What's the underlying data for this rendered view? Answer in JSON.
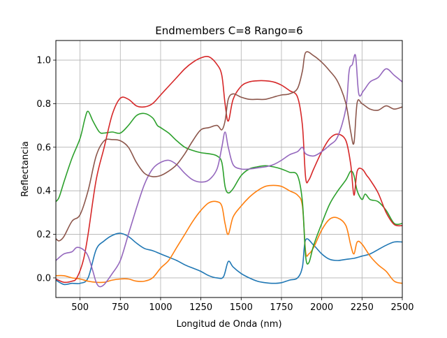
{
  "chart_data": {
    "type": "line",
    "title": "Endmembers C=8 Rango=6",
    "xlabel": "Longitud de Onda (nm)",
    "ylabel": "Reflectancia",
    "xlim": [
      350,
      2500
    ],
    "ylim": [
      -0.09,
      1.09
    ],
    "x_ticks": [
      500,
      750,
      1000,
      1250,
      1500,
      1750,
      2000,
      2250,
      2500
    ],
    "y_ticks": [
      0.0,
      0.2,
      0.4,
      0.6,
      0.8,
      1.0
    ],
    "grid": true,
    "legend": "none",
    "series": [
      {
        "color": "#1f77b4",
        "points": [
          [
            350,
            -0.01
          ],
          [
            400,
            -0.03
          ],
          [
            450,
            -0.025
          ],
          [
            500,
            -0.025
          ],
          [
            550,
            0.0
          ],
          [
            600,
            0.13
          ],
          [
            650,
            0.17
          ],
          [
            700,
            0.195
          ],
          [
            750,
            0.205
          ],
          [
            800,
            0.19
          ],
          [
            850,
            0.16
          ],
          [
            900,
            0.135
          ],
          [
            950,
            0.125
          ],
          [
            1000,
            0.11
          ],
          [
            1050,
            0.095
          ],
          [
            1100,
            0.08
          ],
          [
            1150,
            0.06
          ],
          [
            1200,
            0.045
          ],
          [
            1250,
            0.03
          ],
          [
            1300,
            0.01
          ],
          [
            1350,
            0.0
          ],
          [
            1390,
            0.005
          ],
          [
            1420,
            0.075
          ],
          [
            1450,
            0.05
          ],
          [
            1500,
            0.02
          ],
          [
            1550,
            0.0
          ],
          [
            1600,
            -0.015
          ],
          [
            1650,
            -0.022
          ],
          [
            1700,
            -0.025
          ],
          [
            1750,
            -0.022
          ],
          [
            1800,
            -0.01
          ],
          [
            1850,
            0.0
          ],
          [
            1880,
            0.05
          ],
          [
            1900,
            0.175
          ],
          [
            1950,
            0.15
          ],
          [
            2000,
            0.11
          ],
          [
            2050,
            0.085
          ],
          [
            2100,
            0.08
          ],
          [
            2150,
            0.085
          ],
          [
            2200,
            0.09
          ],
          [
            2250,
            0.1
          ],
          [
            2300,
            0.11
          ],
          [
            2350,
            0.13
          ],
          [
            2400,
            0.15
          ],
          [
            2450,
            0.165
          ],
          [
            2500,
            0.165
          ]
        ]
      },
      {
        "color": "#ff7f0e",
        "points": [
          [
            350,
            0.01
          ],
          [
            400,
            0.01
          ],
          [
            450,
            0.0
          ],
          [
            500,
            -0.005
          ],
          [
            550,
            -0.015
          ],
          [
            600,
            -0.02
          ],
          [
            650,
            -0.02
          ],
          [
            700,
            -0.01
          ],
          [
            750,
            -0.005
          ],
          [
            800,
            -0.005
          ],
          [
            850,
            -0.015
          ],
          [
            900,
            -0.015
          ],
          [
            950,
            0.0
          ],
          [
            1000,
            0.045
          ],
          [
            1050,
            0.08
          ],
          [
            1100,
            0.14
          ],
          [
            1150,
            0.2
          ],
          [
            1200,
            0.26
          ],
          [
            1250,
            0.31
          ],
          [
            1300,
            0.345
          ],
          [
            1350,
            0.35
          ],
          [
            1380,
            0.33
          ],
          [
            1400,
            0.25
          ],
          [
            1420,
            0.2
          ],
          [
            1450,
            0.28
          ],
          [
            1500,
            0.33
          ],
          [
            1550,
            0.37
          ],
          [
            1600,
            0.4
          ],
          [
            1650,
            0.42
          ],
          [
            1700,
            0.425
          ],
          [
            1750,
            0.42
          ],
          [
            1800,
            0.4
          ],
          [
            1850,
            0.38
          ],
          [
            1880,
            0.33
          ],
          [
            1900,
            0.12
          ],
          [
            1920,
            0.11
          ],
          [
            1950,
            0.14
          ],
          [
            2000,
            0.22
          ],
          [
            2050,
            0.27
          ],
          [
            2100,
            0.275
          ],
          [
            2150,
            0.24
          ],
          [
            2180,
            0.15
          ],
          [
            2200,
            0.11
          ],
          [
            2220,
            0.165
          ],
          [
            2250,
            0.155
          ],
          [
            2300,
            0.1
          ],
          [
            2350,
            0.06
          ],
          [
            2400,
            0.03
          ],
          [
            2450,
            -0.015
          ],
          [
            2500,
            -0.025
          ]
        ]
      },
      {
        "color": "#2ca02c",
        "points": [
          [
            350,
            0.35
          ],
          [
            370,
            0.37
          ],
          [
            400,
            0.44
          ],
          [
            450,
            0.55
          ],
          [
            500,
            0.64
          ],
          [
            530,
            0.73
          ],
          [
            550,
            0.765
          ],
          [
            580,
            0.72
          ],
          [
            620,
            0.67
          ],
          [
            650,
            0.665
          ],
          [
            700,
            0.67
          ],
          [
            750,
            0.665
          ],
          [
            800,
            0.7
          ],
          [
            850,
            0.745
          ],
          [
            900,
            0.755
          ],
          [
            950,
            0.735
          ],
          [
            980,
            0.7
          ],
          [
            1000,
            0.69
          ],
          [
            1050,
            0.665
          ],
          [
            1100,
            0.63
          ],
          [
            1150,
            0.6
          ],
          [
            1200,
            0.585
          ],
          [
            1250,
            0.575
          ],
          [
            1300,
            0.57
          ],
          [
            1350,
            0.56
          ],
          [
            1380,
            0.53
          ],
          [
            1400,
            0.42
          ],
          [
            1420,
            0.39
          ],
          [
            1450,
            0.41
          ],
          [
            1500,
            0.47
          ],
          [
            1550,
            0.5
          ],
          [
            1600,
            0.51
          ],
          [
            1650,
            0.515
          ],
          [
            1700,
            0.51
          ],
          [
            1750,
            0.5
          ],
          [
            1800,
            0.485
          ],
          [
            1850,
            0.47
          ],
          [
            1880,
            0.35
          ],
          [
            1900,
            0.1
          ],
          [
            1920,
            0.07
          ],
          [
            1950,
            0.15
          ],
          [
            2000,
            0.25
          ],
          [
            2050,
            0.34
          ],
          [
            2100,
            0.4
          ],
          [
            2150,
            0.45
          ],
          [
            2180,
            0.49
          ],
          [
            2200,
            0.47
          ],
          [
            2220,
            0.4
          ],
          [
            2250,
            0.36
          ],
          [
            2270,
            0.385
          ],
          [
            2300,
            0.36
          ],
          [
            2350,
            0.35
          ],
          [
            2400,
            0.31
          ],
          [
            2450,
            0.25
          ],
          [
            2500,
            0.25
          ]
        ]
      },
      {
        "color": "#d62728",
        "points": [
          [
            350,
            -0.005
          ],
          [
            400,
            -0.02
          ],
          [
            450,
            -0.015
          ],
          [
            480,
            0.0
          ],
          [
            520,
            0.08
          ],
          [
            550,
            0.2
          ],
          [
            600,
            0.45
          ],
          [
            650,
            0.6
          ],
          [
            700,
            0.75
          ],
          [
            750,
            0.825
          ],
          [
            800,
            0.82
          ],
          [
            850,
            0.79
          ],
          [
            900,
            0.785
          ],
          [
            950,
            0.8
          ],
          [
            1000,
            0.84
          ],
          [
            1050,
            0.88
          ],
          [
            1100,
            0.92
          ],
          [
            1150,
            0.96
          ],
          [
            1200,
            0.99
          ],
          [
            1250,
            1.01
          ],
          [
            1300,
            1.015
          ],
          [
            1350,
            0.98
          ],
          [
            1380,
            0.93
          ],
          [
            1400,
            0.8
          ],
          [
            1420,
            0.72
          ],
          [
            1450,
            0.82
          ],
          [
            1500,
            0.88
          ],
          [
            1550,
            0.9
          ],
          [
            1600,
            0.905
          ],
          [
            1650,
            0.905
          ],
          [
            1700,
            0.9
          ],
          [
            1750,
            0.885
          ],
          [
            1800,
            0.86
          ],
          [
            1850,
            0.83
          ],
          [
            1880,
            0.7
          ],
          [
            1900,
            0.46
          ],
          [
            1920,
            0.45
          ],
          [
            1950,
            0.5
          ],
          [
            2000,
            0.58
          ],
          [
            2050,
            0.64
          ],
          [
            2100,
            0.66
          ],
          [
            2150,
            0.63
          ],
          [
            2180,
            0.52
          ],
          [
            2200,
            0.38
          ],
          [
            2220,
            0.49
          ],
          [
            2250,
            0.5
          ],
          [
            2280,
            0.47
          ],
          [
            2300,
            0.45
          ],
          [
            2350,
            0.39
          ],
          [
            2400,
            0.3
          ],
          [
            2450,
            0.245
          ],
          [
            2500,
            0.24
          ]
        ]
      },
      {
        "color": "#9467bd",
        "points": [
          [
            350,
            0.08
          ],
          [
            400,
            0.11
          ],
          [
            450,
            0.12
          ],
          [
            480,
            0.14
          ],
          [
            520,
            0.13
          ],
          [
            550,
            0.1
          ],
          [
            580,
            0.03
          ],
          [
            600,
            -0.02
          ],
          [
            620,
            -0.04
          ],
          [
            650,
            -0.03
          ],
          [
            700,
            0.02
          ],
          [
            750,
            0.08
          ],
          [
            800,
            0.2
          ],
          [
            850,
            0.32
          ],
          [
            900,
            0.43
          ],
          [
            950,
            0.5
          ],
          [
            1000,
            0.53
          ],
          [
            1050,
            0.54
          ],
          [
            1100,
            0.52
          ],
          [
            1150,
            0.48
          ],
          [
            1200,
            0.45
          ],
          [
            1250,
            0.44
          ],
          [
            1300,
            0.45
          ],
          [
            1350,
            0.5
          ],
          [
            1380,
            0.6
          ],
          [
            1400,
            0.67
          ],
          [
            1420,
            0.6
          ],
          [
            1450,
            0.52
          ],
          [
            1500,
            0.5
          ],
          [
            1550,
            0.5
          ],
          [
            1600,
            0.505
          ],
          [
            1650,
            0.51
          ],
          [
            1700,
            0.52
          ],
          [
            1750,
            0.54
          ],
          [
            1800,
            0.565
          ],
          [
            1850,
            0.58
          ],
          [
            1880,
            0.6
          ],
          [
            1900,
            0.57
          ],
          [
            1950,
            0.56
          ],
          [
            2000,
            0.58
          ],
          [
            2050,
            0.61
          ],
          [
            2100,
            0.65
          ],
          [
            2150,
            0.78
          ],
          [
            2170,
            0.95
          ],
          [
            2190,
            0.98
          ],
          [
            2210,
            1.02
          ],
          [
            2230,
            0.845
          ],
          [
            2260,
            0.86
          ],
          [
            2300,
            0.9
          ],
          [
            2350,
            0.92
          ],
          [
            2400,
            0.96
          ],
          [
            2450,
            0.93
          ],
          [
            2500,
            0.9
          ]
        ]
      },
      {
        "color": "#8c564b",
        "points": [
          [
            350,
            0.18
          ],
          [
            370,
            0.17
          ],
          [
            400,
            0.19
          ],
          [
            450,
            0.26
          ],
          [
            500,
            0.29
          ],
          [
            550,
            0.4
          ],
          [
            600,
            0.56
          ],
          [
            650,
            0.63
          ],
          [
            700,
            0.635
          ],
          [
            750,
            0.63
          ],
          [
            800,
            0.6
          ],
          [
            850,
            0.53
          ],
          [
            900,
            0.48
          ],
          [
            950,
            0.465
          ],
          [
            1000,
            0.47
          ],
          [
            1050,
            0.49
          ],
          [
            1100,
            0.52
          ],
          [
            1150,
            0.57
          ],
          [
            1200,
            0.63
          ],
          [
            1250,
            0.68
          ],
          [
            1300,
            0.69
          ],
          [
            1350,
            0.7
          ],
          [
            1380,
            0.68
          ],
          [
            1400,
            0.72
          ],
          [
            1420,
            0.82
          ],
          [
            1450,
            0.845
          ],
          [
            1500,
            0.83
          ],
          [
            1550,
            0.82
          ],
          [
            1600,
            0.82
          ],
          [
            1650,
            0.82
          ],
          [
            1700,
            0.83
          ],
          [
            1750,
            0.84
          ],
          [
            1800,
            0.845
          ],
          [
            1850,
            0.87
          ],
          [
            1880,
            0.95
          ],
          [
            1900,
            1.035
          ],
          [
            1950,
            1.02
          ],
          [
            2000,
            0.99
          ],
          [
            2050,
            0.95
          ],
          [
            2100,
            0.9
          ],
          [
            2150,
            0.8
          ],
          [
            2180,
            0.67
          ],
          [
            2200,
            0.62
          ],
          [
            2220,
            0.805
          ],
          [
            2250,
            0.8
          ],
          [
            2300,
            0.775
          ],
          [
            2350,
            0.77
          ],
          [
            2400,
            0.79
          ],
          [
            2450,
            0.775
          ],
          [
            2500,
            0.785
          ]
        ]
      }
    ]
  }
}
